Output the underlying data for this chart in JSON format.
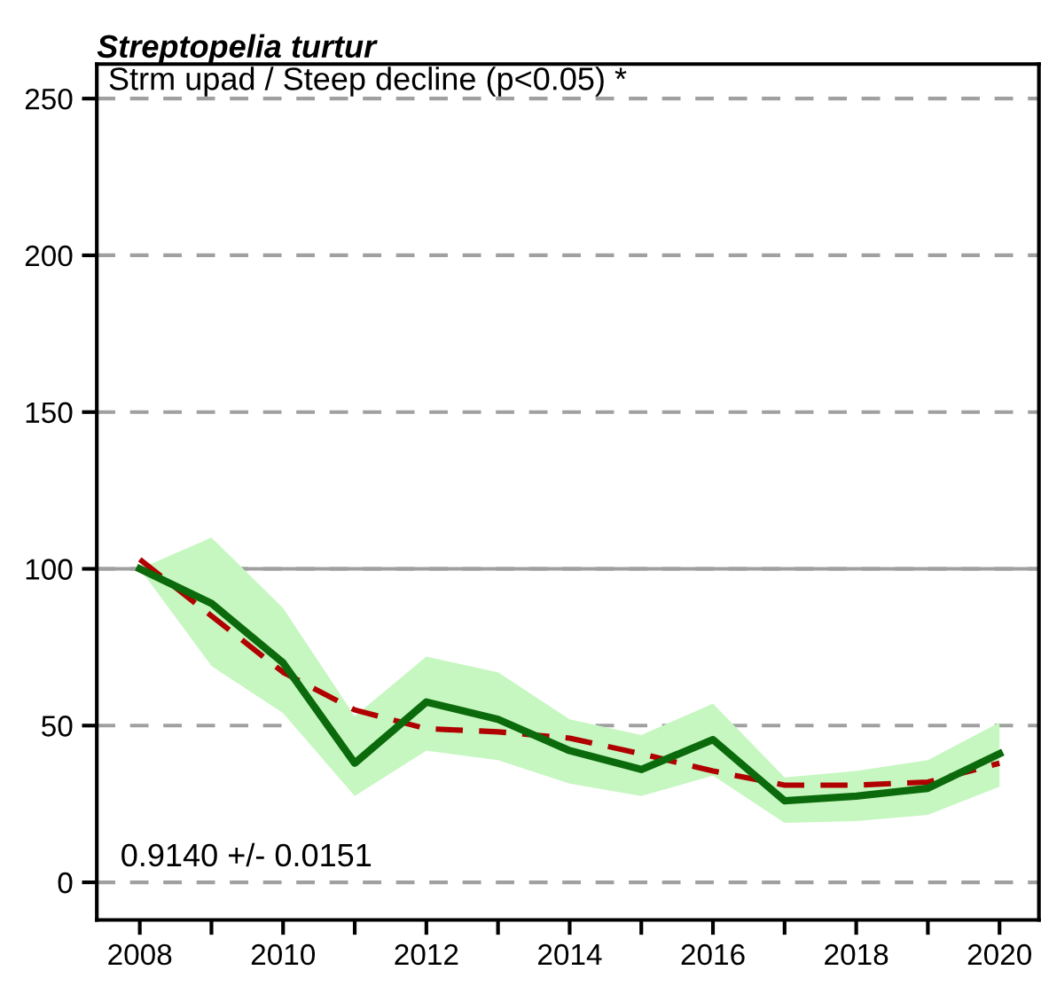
{
  "chart_data": {
    "type": "line",
    "title": "Streptopelia turtur",
    "subtitle": "Strm upad / Steep decline (p<0.05) *",
    "x": [
      2008,
      2009,
      2010,
      2011,
      2012,
      2013,
      2014,
      2015,
      2016,
      2017,
      2018,
      2019,
      2020
    ],
    "series": [
      {
        "color": "#0b6a0b",
        "values": [
          100,
          89,
          70,
          38,
          57.5,
          52,
          42,
          36,
          45.5,
          26,
          27.5,
          30,
          41
        ],
        "lower": [
          100,
          69,
          54,
          27.5,
          42,
          39,
          31.5,
          27.5,
          34,
          19,
          19.5,
          21.5,
          30.5
        ],
        "upper": [
          100,
          110,
          87.5,
          53,
          72,
          67,
          52,
          47,
          57,
          33.5,
          35.5,
          39,
          51
        ],
        "line_style": "solid"
      },
      {
        "color": "#b00000",
        "values": [
          103,
          85,
          67,
          55,
          49,
          48,
          46,
          41,
          35.5,
          31,
          31,
          32,
          38
        ],
        "line_style": "dashed"
      }
    ],
    "xlim": [
      2007.4,
      2020.55
    ],
    "ylim": [
      -12,
      261
    ],
    "xticks": [
      2008,
      {
        "value": 2009,
        "label": null
      },
      2010,
      {
        "value": 2011,
        "label": null
      },
      2012,
      {
        "value": 2013,
        "label": null
      },
      2014,
      {
        "value": 2015,
        "label": null
      },
      2016,
      {
        "value": 2017,
        "label": null
      },
      2018,
      {
        "value": 2019,
        "label": null
      },
      2020
    ],
    "yticks": [
      0,
      50,
      100,
      150,
      200,
      250
    ],
    "grid": "y",
    "ref_lines": [
      {
        "axis": "y",
        "value": 100,
        "color": "#a0a0a0",
        "line_style": "solid"
      }
    ],
    "annotations": [
      "0.9140 +/- 0.0151"
    ],
    "legend": false,
    "marker": "none"
  }
}
